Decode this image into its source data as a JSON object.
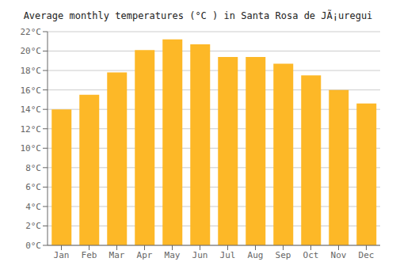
{
  "chart_data": {
    "type": "bar",
    "title": "Average monthly temperatures (°C ) in Santa Rosa de JÃ¡uregui",
    "categories": [
      "Jan",
      "Feb",
      "Mar",
      "Apr",
      "May",
      "Jun",
      "Jul",
      "Aug",
      "Sep",
      "Oct",
      "Nov",
      "Dec"
    ],
    "values": [
      14.0,
      15.5,
      17.8,
      20.1,
      21.2,
      20.7,
      19.4,
      19.4,
      18.7,
      17.5,
      16.0,
      14.6
    ],
    "color": "#FDB827",
    "ylim": [
      0,
      22
    ],
    "yticks": [
      {
        "value": 0,
        "label": "0°C"
      },
      {
        "value": 2,
        "label": "2°C"
      },
      {
        "value": 4,
        "label": "4°C"
      },
      {
        "value": 6,
        "label": "6°C"
      },
      {
        "value": 8,
        "label": "8°C"
      },
      {
        "value": 10,
        "label": "10°C"
      },
      {
        "value": 12,
        "label": "12°C"
      },
      {
        "value": 14,
        "label": "14°C"
      },
      {
        "value": 16,
        "label": "16°C"
      },
      {
        "value": 18,
        "label": "18°C"
      },
      {
        "value": 20,
        "label": "20°C"
      },
      {
        "value": 22,
        "label": "22°C"
      }
    ],
    "grid": true
  }
}
